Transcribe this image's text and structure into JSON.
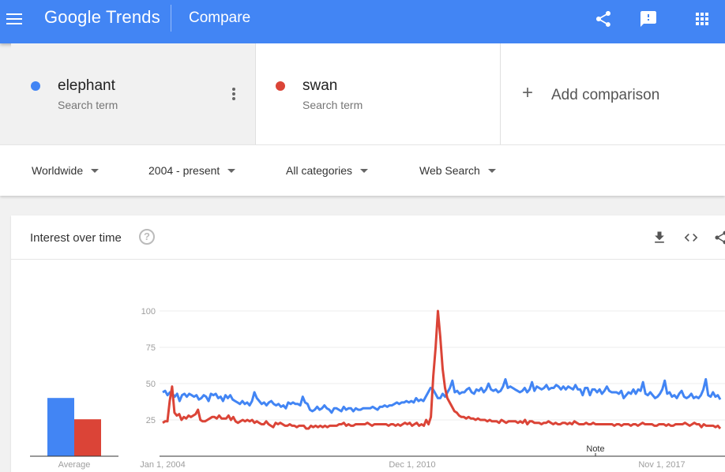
{
  "header": {
    "logo": "Google Trends",
    "title": "Compare",
    "icons": [
      "menu-icon",
      "share-icon",
      "feedback-icon",
      "apps-icon"
    ]
  },
  "terms": [
    {
      "name": "elephant",
      "type": "Search term",
      "color": "#4285f4"
    },
    {
      "name": "swan",
      "type": "Search term",
      "color": "#db4437"
    }
  ],
  "add_comparison": {
    "label": "Add comparison"
  },
  "filters": {
    "region": "Worldwide",
    "time": "2004 - present",
    "category": "All categories",
    "search_type": "Web Search"
  },
  "interest_card": {
    "title": "Interest over time",
    "help_icon": "?",
    "average_label": "Average",
    "note_label": "Note",
    "icons": [
      "download-icon",
      "embed-icon",
      "share-icon"
    ]
  },
  "chart_data": {
    "type": "line",
    "x_start": "2004-01",
    "x_end": "2019-03",
    "x_tick_labels": [
      "Jan 1, 2004",
      "Dec 1, 2010",
      "Nov 1, 2017"
    ],
    "y_ticks": [
      25,
      50,
      75,
      100
    ],
    "ylim": [
      0,
      100
    ],
    "grid": true,
    "series": [
      {
        "name": "elephant",
        "color": "#4285f4",
        "average": 41,
        "values": [
          44,
          45,
          42,
          44,
          43,
          41,
          43,
          38,
          42,
          43,
          41,
          43,
          42,
          41,
          42,
          39,
          40,
          42,
          41,
          38,
          43,
          42,
          43,
          40,
          41,
          38,
          42,
          40,
          42,
          39,
          38,
          37,
          36,
          38,
          36,
          37,
          35,
          38,
          44,
          40,
          38,
          36,
          37,
          35,
          37,
          38,
          36,
          35,
          36,
          34,
          35,
          33,
          37,
          36,
          37,
          36,
          36,
          35,
          41,
          37,
          36,
          32,
          31,
          32,
          34,
          32,
          33,
          35,
          33,
          32,
          30,
          33,
          33,
          32,
          31,
          34,
          32,
          33,
          33,
          31,
          33,
          32,
          32,
          33,
          33,
          33,
          33,
          34,
          33,
          32,
          34,
          34,
          35,
          34,
          35,
          35,
          36,
          37,
          36,
          37,
          37,
          38,
          37,
          38,
          37,
          40,
          38,
          39,
          38,
          41,
          44,
          47,
          46,
          43,
          40,
          40,
          43,
          41,
          44,
          47,
          52,
          44,
          45,
          43,
          44,
          44,
          46,
          47,
          44,
          43,
          46,
          45,
          47,
          44,
          46,
          50,
          46,
          45,
          46,
          44,
          45,
          48,
          53,
          47,
          48,
          47,
          46,
          45,
          44,
          45,
          47,
          44,
          46,
          51,
          45,
          48,
          47,
          46,
          47,
          49,
          46,
          47,
          47,
          49,
          48,
          46,
          48,
          46,
          48,
          47,
          46,
          49,
          46,
          46,
          42,
          47,
          47,
          42,
          46,
          46,
          44,
          46,
          43,
          45,
          48,
          45,
          44,
          44,
          44,
          43,
          45,
          40,
          42,
          44,
          43,
          46,
          43,
          46,
          45,
          51,
          43,
          42,
          44,
          42,
          40,
          41,
          43,
          46,
          52,
          43,
          44,
          41,
          42,
          40,
          43,
          45,
          41,
          40,
          41,
          43,
          40,
          41,
          40,
          42,
          46,
          53,
          42,
          41,
          44,
          41,
          42,
          39
        ]
      },
      {
        "name": "swan",
        "color": "#db4437",
        "average": 26,
        "values": [
          23,
          24,
          24,
          38,
          48,
          30,
          28,
          29,
          25,
          27,
          26,
          28,
          27,
          28,
          29,
          32,
          25,
          24,
          24,
          25,
          26,
          27,
          27,
          26,
          28,
          26,
          26,
          26,
          28,
          25,
          27,
          24,
          23,
          24,
          25,
          24,
          25,
          24,
          25,
          23,
          24,
          23,
          22,
          22,
          24,
          22,
          21,
          20,
          23,
          22,
          23,
          22,
          21,
          21,
          22,
          21,
          21,
          20,
          21,
          21,
          21,
          19,
          19,
          21,
          20,
          21,
          20,
          21,
          20,
          21,
          20,
          21,
          21,
          21,
          21,
          22,
          22,
          23,
          21,
          22,
          21,
          21,
          22,
          22,
          22,
          22,
          22,
          23,
          22,
          21,
          22,
          22,
          22,
          22,
          22,
          22,
          21,
          22,
          22,
          21,
          22,
          21,
          22,
          23,
          22,
          23,
          21,
          22,
          23,
          21,
          22,
          21,
          25,
          22,
          27,
          55,
          75,
          100,
          82,
          60,
          47,
          40,
          37,
          34,
          31,
          30,
          28,
          27,
          27,
          26,
          27,
          26,
          26,
          25,
          26,
          25,
          25,
          25,
          24,
          25,
          24,
          24,
          24,
          23,
          25,
          24,
          23,
          24,
          24,
          24,
          24,
          23,
          24,
          23,
          25,
          22,
          24,
          24,
          23,
          23,
          23,
          22,
          23,
          23,
          24,
          23,
          22,
          23,
          22,
          22,
          23,
          23,
          22,
          23,
          22,
          24,
          23,
          22,
          22,
          22,
          23,
          22,
          22,
          23,
          22,
          22,
          22,
          22,
          22,
          22,
          22,
          22,
          21,
          22,
          22,
          21,
          22,
          22,
          22,
          21,
          22,
          22,
          21,
          22,
          23,
          22,
          22,
          22,
          22,
          21,
          21,
          22,
          22,
          22,
          21,
          22,
          21,
          21,
          22,
          22,
          22,
          22,
          23,
          22,
          21,
          22,
          23,
          22,
          22,
          20,
          22,
          21,
          21,
          21,
          21,
          20,
          21,
          19
        ]
      }
    ]
  }
}
